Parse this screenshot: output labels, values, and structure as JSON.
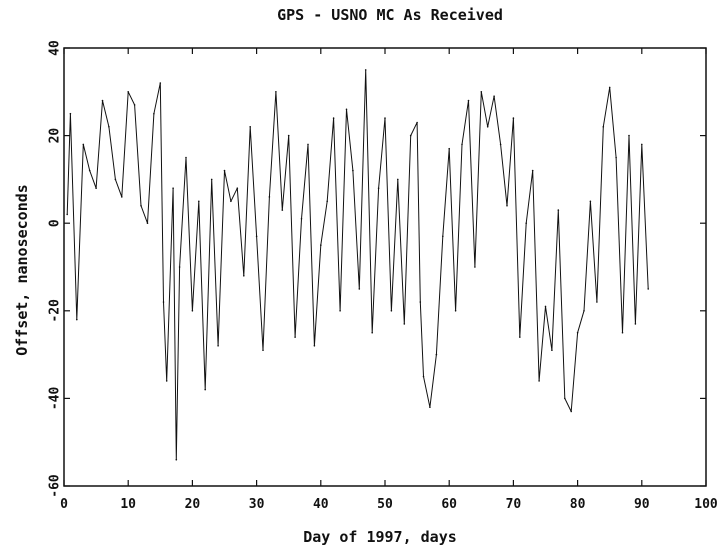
{
  "chart_data": {
    "type": "line",
    "title": "GPS - USNO MC As Received",
    "xlabel": "Day of 1997, days",
    "ylabel": "Offset, nanoseconds",
    "xlim": [
      0,
      100
    ],
    "ylim": [
      -60,
      40
    ],
    "xticks": [
      0,
      10,
      20,
      30,
      40,
      50,
      60,
      70,
      80,
      90,
      100
    ],
    "yticks": [
      -60,
      -40,
      -20,
      0,
      20,
      40
    ],
    "grid": false,
    "legend": "none",
    "line_color": "#111111",
    "series": [
      {
        "x": [
          0.5,
          1,
          2,
          3,
          4,
          5,
          6,
          7,
          8,
          9,
          10,
          11,
          12,
          13,
          14,
          15,
          15.5,
          16,
          17,
          17.5,
          18,
          19,
          20,
          21,
          22,
          23,
          24,
          25,
          26,
          27,
          28,
          29,
          30,
          31,
          32,
          33,
          34,
          35,
          36,
          37,
          38,
          39,
          40,
          41,
          42,
          43,
          44,
          45,
          46,
          47,
          48,
          49,
          50,
          51,
          52,
          53,
          54,
          55,
          55.5,
          56,
          57,
          58,
          59,
          60,
          61,
          62,
          63,
          64,
          65,
          66,
          67,
          68,
          69,
          70,
          71,
          72,
          73,
          74,
          75,
          76,
          77,
          78,
          79,
          80,
          81,
          82,
          83,
          84,
          85,
          86,
          87,
          88,
          89,
          90,
          91
        ],
        "y": [
          2,
          25,
          -22,
          18,
          12,
          8,
          28,
          22,
          10,
          6,
          30,
          27,
          4,
          0,
          25,
          32,
          -18,
          -36,
          8,
          -54,
          -10,
          15,
          -20,
          5,
          -38,
          10,
          -28,
          12,
          5,
          8,
          -12,
          22,
          -3,
          -29,
          6,
          30,
          3,
          20,
          -26,
          1,
          18,
          -28,
          -5,
          5,
          24,
          -20,
          26,
          12,
          -15,
          35,
          -25,
          8,
          24,
          -20,
          10,
          -23,
          20,
          23,
          -18,
          -35,
          -42,
          -30,
          -3,
          17,
          -20,
          18,
          28,
          -10,
          30,
          22,
          29,
          18,
          4,
          24,
          -26,
          0,
          12,
          -36,
          -19,
          -29,
          3,
          -40,
          -43,
          -25,
          -20,
          5,
          -18,
          22,
          31,
          15,
          -25,
          20,
          -23,
          18,
          -15
        ]
      }
    ]
  }
}
